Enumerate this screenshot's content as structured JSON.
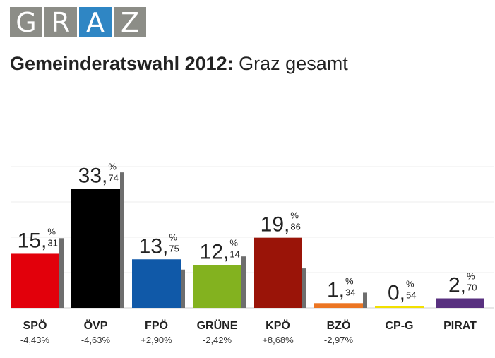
{
  "logo": {
    "letters": [
      "G",
      "R",
      "A",
      "Z"
    ],
    "highlight_index": 2,
    "tile_color": "#8c8d87",
    "highlight_color": "#2f86c4"
  },
  "title": {
    "bold": "Gemeinderatswahl 2012:",
    "regular": "Graz gesamt"
  },
  "chart_data": {
    "type": "bar",
    "title": "Gemeinderatswahl 2012: Graz gesamt",
    "categories": [
      "SPÖ",
      "ÖVP",
      "FPÖ",
      "GRÜNE",
      "KPÖ",
      "BZÖ",
      "CP-G",
      "PIRAT"
    ],
    "values": [
      15.31,
      33.74,
      13.75,
      12.14,
      19.86,
      1.34,
      0.54,
      2.7
    ],
    "value_labels": [
      {
        "int": "15,",
        "dec": "31"
      },
      {
        "int": "33,",
        "dec": "74"
      },
      {
        "int": "13,",
        "dec": "75"
      },
      {
        "int": "12,",
        "dec": "14"
      },
      {
        "int": "19,",
        "dec": "86"
      },
      {
        "int": "1,",
        "dec": "34"
      },
      {
        "int": "0,",
        "dec": "54"
      },
      {
        "int": "2,",
        "dec": "70"
      }
    ],
    "unit": "%",
    "changes": [
      "-4,43%",
      "-4,63%",
      "+2,90%",
      "-2,42%",
      "+8,68%",
      "-2,97%",
      "",
      ""
    ],
    "previous_values": [
      19.74,
      38.37,
      10.85,
      14.56,
      11.18,
      4.31,
      null,
      null
    ],
    "colors": [
      "#e2000b",
      "#000000",
      "#1059a8",
      "#83b21f",
      "#9a1408",
      "#ec7522",
      "#f2e000",
      "#58307f"
    ],
    "previous_color": "#6e6e6e",
    "ylim": [
      0,
      40
    ],
    "grid": true
  }
}
